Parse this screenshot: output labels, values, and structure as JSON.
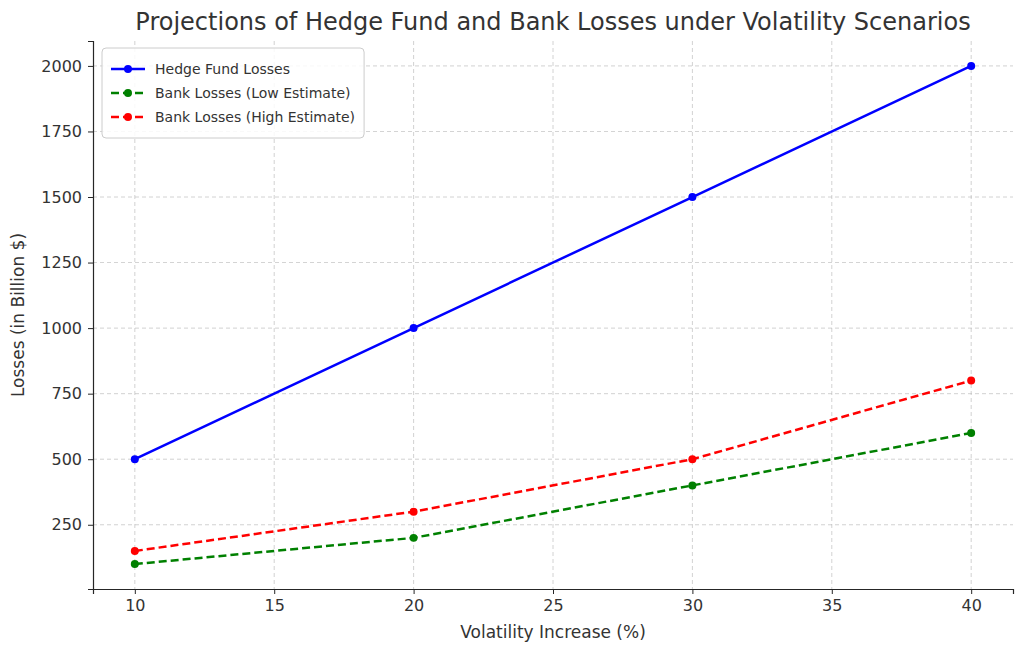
{
  "chart_data": {
    "type": "line",
    "title": "Projections of Hedge Fund and Bank Losses under Volatility Scenarios",
    "x_label": "Volatility Increase (%)",
    "y_label": "Losses (in Billion $)",
    "x": [
      10,
      20,
      30,
      40
    ],
    "series": [
      {
        "name": "Hedge Fund Losses",
        "color": "#0000ff",
        "values": [
          500,
          1000,
          1500,
          2000
        ],
        "marker": "circle",
        "line_style": "solid"
      },
      {
        "name": "Bank Losses (Low Estimate)",
        "color": "#008000",
        "values": [
          100,
          200,
          400,
          600
        ],
        "marker": "circle",
        "line_style": "dashed"
      },
      {
        "name": "Bank Losses (High Estimate)",
        "color": "#ff0000",
        "values": [
          150,
          300,
          500,
          800
        ],
        "marker": "circle",
        "line_style": "dashed"
      }
    ],
    "xlim": [
      8.5,
      41.5
    ],
    "xticks": [
      10,
      15,
      20,
      25,
      30,
      35,
      40
    ],
    "ylim": [
      5,
      2095
    ],
    "yticks": [
      250,
      500,
      750,
      1000,
      1250,
      1500,
      1750,
      2000
    ],
    "grid": true,
    "legend": "upper left"
  }
}
